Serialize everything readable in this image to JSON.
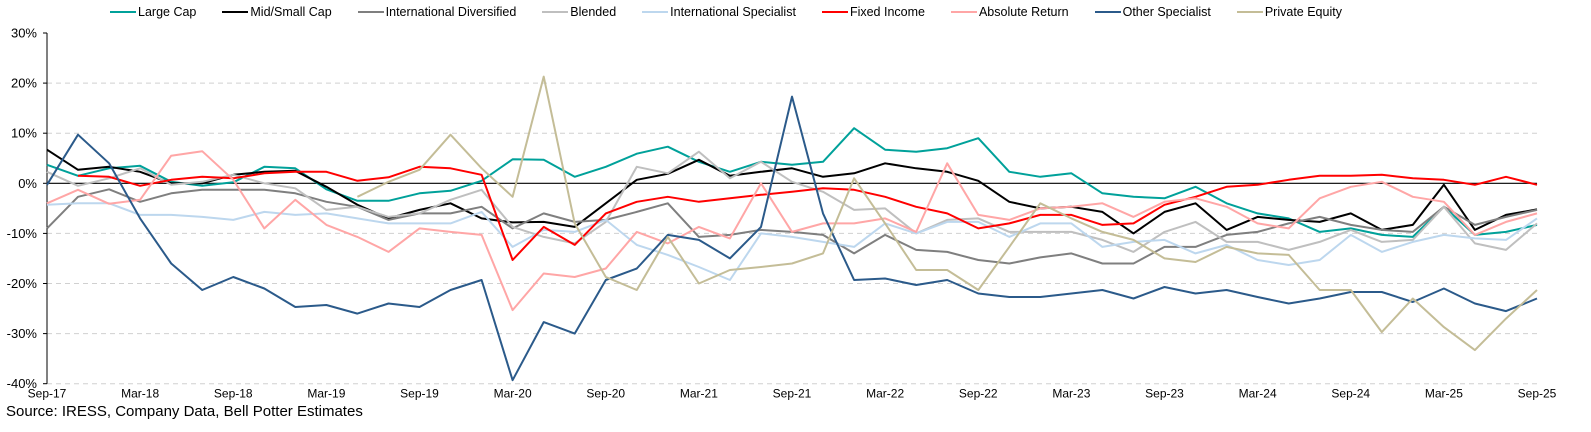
{
  "chart_data": {
    "type": "line",
    "title": "",
    "xlabel": "",
    "ylabel": "",
    "ylim": [
      -40,
      30
    ],
    "yticks": [
      "30%",
      "20%",
      "10%",
      "0%",
      "-10%",
      "-20%",
      "-30%",
      "-40%"
    ],
    "ytick_values": [
      30,
      20,
      10,
      0,
      -10,
      -20,
      -30,
      -40
    ],
    "grid": "horizontal dashed",
    "legend_position": "top",
    "xtick_labels": [
      "Sep-17",
      "Mar-18",
      "Sep-18",
      "Mar-19",
      "Sep-19",
      "Mar-20",
      "Sep-20",
      "Mar-21",
      "Sep-21",
      "Mar-22",
      "Sep-22",
      "Mar-23",
      "Sep-23",
      "Mar-24",
      "Sep-24",
      "Mar-25",
      "Sep-25"
    ],
    "x": [
      "Sep-17",
      "Nov-17",
      "Jan-18",
      "Mar-18",
      "May-18",
      "Jul-18",
      "Sep-18",
      "Nov-18",
      "Jan-19",
      "Mar-19",
      "May-19",
      "Jul-19",
      "Sep-19",
      "Nov-19",
      "Jan-20",
      "Mar-20",
      "May-20",
      "Jul-20",
      "Sep-20",
      "Nov-20",
      "Jan-21",
      "Mar-21",
      "May-21",
      "Jul-21",
      "Sep-21",
      "Nov-21",
      "Jan-22",
      "Mar-22",
      "May-22",
      "Jul-22",
      "Sep-22",
      "Nov-22",
      "Jan-23",
      "Mar-23",
      "May-23",
      "Jul-23",
      "Sep-23",
      "Nov-23",
      "Jan-24",
      "Mar-24",
      "May-24",
      "Jul-24",
      "Sep-24",
      "Nov-24",
      "Jan-25",
      "Mar-25",
      "May-25",
      "Jul-25",
      "Sep-25"
    ],
    "series": [
      {
        "name": "Large Cap",
        "color": "#00a19a",
        "values": [
          3.7,
          1.5,
          3.0,
          3.5,
          0.3,
          -0.5,
          0.2,
          3.3,
          3.0,
          -1.2,
          -3.5,
          -3.5,
          -2.0,
          -1.5,
          0.5,
          4.8,
          4.7,
          1.3,
          3.3,
          5.9,
          7.3,
          4.3,
          2.3,
          4.3,
          3.7,
          4.3,
          11,
          6.7,
          6.3,
          7,
          9,
          2.3,
          1.3,
          2,
          -2,
          -2.7,
          -3,
          -0.7,
          -4,
          -6,
          -7,
          -9.7,
          -9,
          -10.3,
          -10.7,
          -4.7,
          -10.3,
          -9.7,
          -8.3
        ]
      },
      {
        "name": "Mid/Small Cap",
        "color": "#000000",
        "values": [
          6.7,
          2.7,
          3.3,
          2.3,
          0,
          0,
          1.7,
          2.3,
          2.5,
          -0.7,
          -4.3,
          -7,
          -5.3,
          -4,
          -7,
          -7.8,
          -7.7,
          -8.7,
          -4,
          0.7,
          1.9,
          4.7,
          1.5,
          2.3,
          3,
          1.3,
          2,
          4,
          3,
          2.3,
          0.5,
          -3.7,
          -5,
          -4.7,
          -5.7,
          -10,
          -5.7,
          -4,
          -9.3,
          -6.7,
          -7.3,
          -7.7,
          -6,
          -9.3,
          -8.3,
          -0.3,
          -9.3,
          -6.3,
          -5.2
        ]
      },
      {
        "name": "International Diversified",
        "color": "#7f7f7f",
        "values": [
          -9,
          -2.7,
          -1.2,
          -3.7,
          -2,
          -1.3,
          -1.3,
          -1.3,
          -2,
          -3.7,
          -4.7,
          -7.3,
          -6,
          -6,
          -4.7,
          -9,
          -6,
          -7.7,
          -7.3,
          -5.7,
          -4,
          -10.7,
          -10.3,
          -9.3,
          -9.7,
          -10.3,
          -14,
          -10.3,
          -13.3,
          -13.7,
          -15.3,
          -16,
          -14.8,
          -14,
          -16,
          -16,
          -12.7,
          -12.7,
          -10.3,
          -9.7,
          -8,
          -6.7,
          -8.3,
          -9.3,
          -9.7,
          -4.7,
          -8.3,
          -6.7,
          -5.3
        ]
      },
      {
        "name": "Blended",
        "color": "#bfbfbf",
        "values": [
          2.3,
          -0.5,
          1,
          3,
          -0.3,
          0.3,
          1.7,
          0,
          -1,
          -5.3,
          -4.7,
          -6.7,
          -6,
          -3.3,
          -1.3,
          -8.7,
          -10.7,
          -12,
          -7.7,
          3.3,
          2,
          6.3,
          1,
          4.3,
          0.3,
          -1.7,
          -5.3,
          -5,
          -10,
          -7.3,
          -7,
          -9.7,
          -9.7,
          -9.7,
          -11.3,
          -13.7,
          -9.7,
          -7.7,
          -11.7,
          -11.7,
          -13.3,
          -11.7,
          -9.3,
          -11.7,
          -11.3,
          -4.7,
          -12,
          -13.3,
          -8
        ]
      },
      {
        "name": "International Specialist",
        "color": "#bdd7ee",
        "values": [
          -4.3,
          -4,
          -4,
          -6.3,
          -6.3,
          -6.7,
          -7.3,
          -5.7,
          -6.3,
          -6,
          -7,
          -8,
          -8,
          -8,
          -5.7,
          -12.7,
          -9.3,
          -9.7,
          -7.3,
          -12.3,
          -14.3,
          -16.7,
          -19.3,
          -10,
          -10.7,
          -11.7,
          -12.7,
          -8,
          -10,
          -7.7,
          -7.7,
          -10.7,
          -8,
          -8,
          -12.7,
          -11.7,
          -11.3,
          -14,
          -12.3,
          -15.3,
          -16.3,
          -15.3,
          -10.3,
          -13.7,
          -11.7,
          -10.3,
          -11,
          -11.3,
          -7
        ]
      },
      {
        "name": "Fixed Income",
        "color": "#ff0000",
        "values": [
          null,
          1.5,
          1.3,
          -0.5,
          0.7,
          1.3,
          1,
          2,
          2.3,
          2.3,
          0.5,
          1.2,
          3.3,
          3,
          1.7,
          -15.3,
          -8.7,
          -12.3,
          -6,
          -3.7,
          -2.7,
          -3.7,
          -3,
          -2.3,
          -1.7,
          -1,
          -1.3,
          -2.7,
          -4.7,
          -6,
          -9,
          -8,
          -6.3,
          -6.3,
          -8.3,
          -8,
          -4.3,
          -2.7,
          -0.7,
          -0.3,
          0.7,
          1.5,
          1.5,
          1.7,
          1,
          0.7,
          -0.3,
          1.3,
          -0.3
        ]
      },
      {
        "name": "Absolute Return",
        "color": "#ffa6a6",
        "values": [
          -4,
          -1.3,
          -4.1,
          -3.3,
          5.5,
          6.4,
          0.7,
          -9,
          -3.3,
          -8.3,
          -10.7,
          -13.7,
          -9,
          -9.7,
          -10.3,
          -25.3,
          -18,
          -18.7,
          -17,
          -9.7,
          -12,
          -8.7,
          -11,
          0,
          -9.7,
          -8,
          -8,
          -7,
          -9.7,
          4,
          -6.3,
          -7.3,
          -5,
          -4.7,
          -4,
          -6.7,
          -3.7,
          -3,
          -4.7,
          -8,
          -9,
          -3,
          -0.7,
          0.3,
          -2.7,
          -3.7,
          -10.3,
          -7.7,
          -6
        ]
      },
      {
        "name": "Other Specialist",
        "color": "#2b5a8a",
        "values": [
          -0.3,
          9.7,
          4,
          -7,
          -16,
          -21.3,
          -18.7,
          -21,
          -24.7,
          -24.3,
          -26,
          -24,
          -24.7,
          -21.3,
          -19.3,
          -39.3,
          -27.7,
          -30,
          -19.3,
          -17,
          -10.3,
          -11.3,
          -15,
          -8.7,
          17.3,
          -6,
          -19.3,
          -19,
          -20.3,
          -19.3,
          -22,
          -22.7,
          -22.7,
          -22,
          -21.3,
          -23,
          -20.7,
          -22,
          -21.3,
          -22.7,
          -24,
          -23,
          -21.7,
          -21.7,
          -23.7,
          -21,
          -24,
          -25.5,
          -23
        ]
      },
      {
        "name": "Private Equity",
        "color": "#c4bd97",
        "values": [
          null,
          null,
          null,
          null,
          null,
          null,
          null,
          null,
          null,
          null,
          -2.7,
          0.3,
          2.7,
          9.7,
          3,
          -2.7,
          21.3,
          -8,
          -18.7,
          -21.3,
          -10.7,
          -20,
          -17.3,
          -16.7,
          -16,
          -14,
          1,
          -8,
          -17.3,
          -17.3,
          -21.3,
          -12.7,
          -4,
          -7,
          -9.7,
          -11.3,
          -15,
          -15.7,
          -12.7,
          -14,
          -14.3,
          -21.3,
          -21.3,
          -29.7,
          -23,
          -28.7,
          -33.3,
          -27,
          -21.3
        ]
      }
    ]
  },
  "source": "Source: IRESS, Company Data, Bell Potter Estimates"
}
